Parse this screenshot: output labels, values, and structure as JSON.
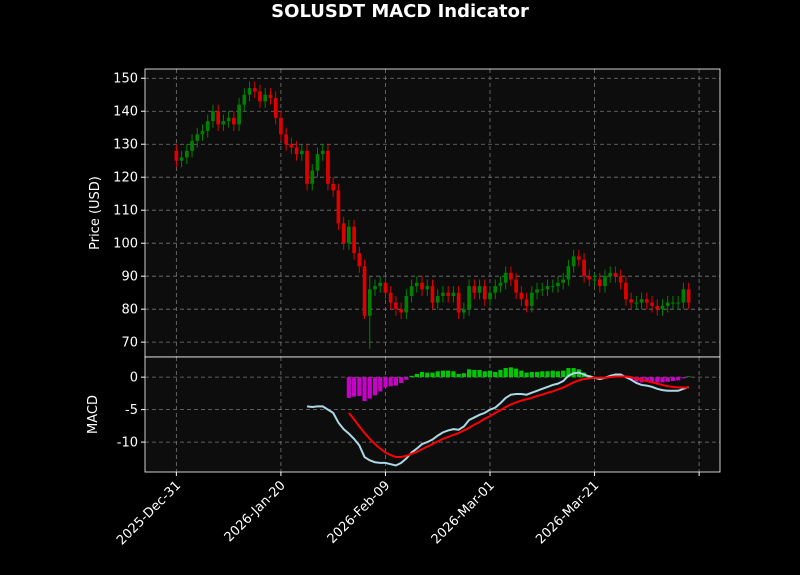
{
  "chart_data": {
    "title": "SOLUSDT MACD Indicator",
    "x": [
      "2025-12-31",
      "2026-01-01",
      "2026-01-02",
      "2026-01-03",
      "2026-01-04",
      "2026-01-05",
      "2026-01-06",
      "2026-01-07",
      "2026-01-08",
      "2026-01-09",
      "2026-01-10",
      "2026-01-11",
      "2026-01-12",
      "2026-01-13",
      "2026-01-14",
      "2026-01-15",
      "2026-01-16",
      "2026-01-17",
      "2026-01-18",
      "2026-01-19",
      "2026-01-20",
      "2026-01-21",
      "2026-01-22",
      "2026-01-23",
      "2026-01-24",
      "2026-01-25",
      "2026-01-26",
      "2026-01-27",
      "2026-01-28",
      "2026-01-29",
      "2026-01-30",
      "2026-01-31",
      "2026-02-01",
      "2026-02-02",
      "2026-02-03",
      "2026-02-04",
      "2026-02-05",
      "2026-02-06",
      "2026-02-07",
      "2026-02-08",
      "2026-02-09",
      "2026-02-10",
      "2026-02-11",
      "2026-02-12",
      "2026-02-13",
      "2026-02-14",
      "2026-02-15",
      "2026-02-16",
      "2026-02-17",
      "2026-02-18",
      "2026-02-19",
      "2026-02-20",
      "2026-02-21",
      "2026-02-22",
      "2026-02-23",
      "2026-02-24",
      "2026-02-25",
      "2026-02-26",
      "2026-02-27",
      "2026-02-28",
      "2026-03-01",
      "2026-03-02",
      "2026-03-03",
      "2026-03-04",
      "2026-03-05",
      "2026-03-06",
      "2026-03-07",
      "2026-03-08",
      "2026-03-09",
      "2026-03-10",
      "2026-03-11",
      "2026-03-12",
      "2026-03-13",
      "2026-03-14",
      "2026-03-15",
      "2026-03-16",
      "2026-03-17",
      "2026-03-18",
      "2026-03-19",
      "2026-03-20",
      "2026-03-21",
      "2026-03-22",
      "2026-03-23",
      "2026-03-24",
      "2026-03-25",
      "2026-03-26",
      "2026-03-27",
      "2026-03-28",
      "2026-03-29",
      "2026-03-30",
      "2026-03-31",
      "2026-04-01",
      "2026-04-02",
      "2026-04-03",
      "2026-04-04",
      "2026-04-05",
      "2026-04-06",
      "2026-04-07",
      "2026-04-08"
    ],
    "xlim": [
      "2025-12-25",
      "2026-04-14"
    ],
    "xticks": [
      {
        "value": "2025-12-31",
        "label": "2025-Dec-31"
      },
      {
        "value": "2026-01-20",
        "label": "2026-Jan-20"
      },
      {
        "value": "2026-02-09",
        "label": "2026-Feb-09"
      },
      {
        "value": "2026-03-01",
        "label": "2026-Mar-01"
      },
      {
        "value": "2026-03-21",
        "label": "2026-Mar-21"
      },
      {
        "value": "2026-04-10",
        "label": null
      }
    ],
    "grid": true,
    "panels": [
      {
        "type": "candlestick",
        "ylabel": "Price (USD)",
        "up_color": "#008000",
        "down_color": "#e00000",
        "ylim": [
          65.5,
          152.8
        ],
        "yticks": [
          70,
          80,
          90,
          100,
          110,
          120,
          130,
          140,
          150
        ],
        "open": [
          128,
          125,
          126,
          128,
          131,
          133,
          134,
          137,
          140,
          136,
          137,
          138,
          136,
          142,
          145,
          147,
          146,
          143,
          145,
          144,
          138,
          133,
          130,
          129,
          127,
          128,
          118,
          122,
          127,
          128,
          118,
          116,
          106,
          100,
          105,
          97,
          93,
          78,
          86,
          87,
          88,
          85,
          82,
          80,
          79,
          84,
          87,
          88,
          86,
          87,
          82,
          84,
          85,
          84,
          85,
          79,
          80,
          87,
          85,
          87,
          83,
          85,
          87,
          88,
          91,
          89,
          85,
          83,
          81,
          85,
          86,
          86,
          87,
          87,
          88,
          89,
          93,
          96,
          95,
          90,
          89,
          89,
          87,
          90,
          91,
          90,
          88,
          83,
          82,
          82,
          83,
          82,
          81,
          80,
          81,
          82,
          82,
          82,
          86
        ],
        "high": [
          130,
          128,
          130,
          133,
          135,
          136,
          139,
          142,
          142,
          139,
          140,
          140,
          144,
          147,
          149,
          149,
          148,
          147,
          147,
          146,
          140,
          135,
          132,
          131,
          130,
          130,
          124,
          129,
          130,
          130,
          120,
          118,
          108,
          107,
          107,
          99,
          95,
          90,
          89,
          90,
          90,
          87,
          84,
          82,
          86,
          89,
          90,
          90,
          89,
          89,
          86,
          87,
          87,
          87,
          87,
          82,
          89,
          89,
          89,
          89,
          87,
          89,
          90,
          93,
          93,
          91,
          87,
          85,
          87,
          88,
          88,
          89,
          89,
          90,
          91,
          95,
          98,
          98,
          97,
          92,
          91,
          91,
          92,
          93,
          93,
          92,
          90,
          85,
          84,
          85,
          85,
          84,
          83,
          83,
          84,
          84,
          84,
          88,
          88
        ],
        "low": [
          123,
          123,
          124,
          126,
          129,
          131,
          132,
          135,
          134,
          134,
          135,
          134,
          134,
          140,
          143,
          144,
          141,
          141,
          142,
          136,
          131,
          128,
          127,
          125,
          125,
          116,
          116,
          120,
          125,
          116,
          114,
          104,
          98,
          98,
          95,
          91,
          77,
          68,
          84,
          85,
          83,
          80,
          78,
          77,
          77,
          82,
          85,
          84,
          84,
          80,
          80,
          82,
          82,
          82,
          77,
          77,
          78,
          83,
          83,
          81,
          81,
          83,
          85,
          86,
          87,
          83,
          81,
          79,
          79,
          83,
          84,
          84,
          85,
          85,
          86,
          87,
          91,
          93,
          88,
          87,
          87,
          85,
          85,
          88,
          88,
          86,
          81,
          80,
          80,
          80,
          80,
          79,
          78,
          78,
          79,
          80,
          80,
          80,
          80
        ],
        "close": [
          125,
          126,
          128,
          131,
          133,
          134,
          137,
          140,
          136,
          137,
          138,
          136,
          142,
          145,
          147,
          146,
          143,
          145,
          144,
          138,
          133,
          130,
          129,
          127,
          128,
          118,
          122,
          127,
          128,
          118,
          116,
          106,
          100,
          105,
          97,
          93,
          78,
          86,
          87,
          88,
          85,
          82,
          80,
          79,
          84,
          87,
          88,
          86,
          87,
          82,
          84,
          85,
          84,
          85,
          79,
          80,
          87,
          85,
          87,
          83,
          85,
          87,
          88,
          91,
          89,
          85,
          83,
          81,
          85,
          86,
          86,
          87,
          87,
          88,
          89,
          93,
          96,
          95,
          90,
          89,
          89,
          87,
          90,
          91,
          90,
          88,
          83,
          82,
          82,
          83,
          82,
          81,
          80,
          81,
          82,
          82,
          82,
          86,
          82
        ]
      },
      {
        "type": "macd",
        "ylabel": "MACD",
        "ylim": [
          -14.6,
          3.1
        ],
        "yticks": [
          0,
          -5,
          -10
        ],
        "series": [
          {
            "type": "bar",
            "color": "#00c800",
            "negative_color": "#c800c8",
            "values": [
              null,
              null,
              null,
              null,
              null,
              null,
              null,
              null,
              null,
              null,
              null,
              null,
              null,
              null,
              null,
              null,
              null,
              null,
              null,
              null,
              null,
              null,
              null,
              null,
              null,
              null,
              null,
              null,
              null,
              null,
              null,
              null,
              null,
              -3.2,
              -3,
              -2.9,
              -3.7,
              -3.3,
              -2.8,
              -2.2,
              -1.6,
              -1.4,
              -1.3,
              -0.9,
              -0.4,
              0.2,
              0.5,
              0.8,
              0.7,
              0.7,
              0.9,
              1,
              1,
              0.9,
              0.5,
              0.6,
              1.2,
              1.1,
              1.1,
              0.9,
              1,
              0.8,
              1.1,
              1.4,
              1.5,
              1.3,
              1,
              0.7,
              0.8,
              0.8,
              0.9,
              0.9,
              1,
              0.9,
              1,
              1.4,
              1.4,
              1.2,
              0.7,
              0.3,
              0,
              -0.2,
              0,
              0.2,
              0.3,
              0.3,
              -0.1,
              -0.4,
              -0.7,
              -0.8,
              -0.7,
              -0.7,
              -0.8,
              -0.8,
              -0.7,
              -0.6,
              -0.5,
              -0.2,
              0.1
            ]
          },
          {
            "type": "line",
            "color": "#add8e6",
            "values": [
              null,
              null,
              null,
              null,
              null,
              null,
              null,
              null,
              null,
              null,
              null,
              null,
              null,
              null,
              null,
              null,
              null,
              null,
              null,
              null,
              null,
              null,
              null,
              null,
              null,
              -4.5,
              -4.6,
              -4.5,
              -4.5,
              -5,
              -5.5,
              -7,
              -8,
              -8.7,
              -9.5,
              -10.5,
              -12.3,
              -12.8,
              -13.1,
              -13.2,
              -13.2,
              -13.4,
              -13.6,
              -13.2,
              -12.5,
              -11.6,
              -11,
              -10.3,
              -10,
              -9.6,
              -9,
              -8.5,
              -8.2,
              -8,
              -8.1,
              -7.6,
              -6.6,
              -6.2,
              -5.8,
              -5.5,
              -5,
              -4.7,
              -4,
              -3.2,
              -2.7,
              -2.6,
              -2.6,
              -2.7,
              -2.4,
              -2.1,
              -1.8,
              -1.5,
              -1.2,
              -1,
              -0.6,
              0.2,
              0.6,
              0.7,
              0.4,
              0.1,
              -0.1,
              -0.3,
              -0.1,
              0.2,
              0.4,
              0.4,
              0,
              -0.4,
              -0.9,
              -1.2,
              -1.3,
              -1.5,
              -1.8,
              -2,
              -2.1,
              -2.1,
              -2.1,
              -1.8,
              -1.5
            ]
          },
          {
            "type": "line",
            "color": "#ff0000",
            "values": [
              null,
              null,
              null,
              null,
              null,
              null,
              null,
              null,
              null,
              null,
              null,
              null,
              null,
              null,
              null,
              null,
              null,
              null,
              null,
              null,
              null,
              null,
              null,
              null,
              null,
              null,
              null,
              null,
              null,
              null,
              null,
              null,
              null,
              -5.5,
              -6.5,
              -7.6,
              -8.6,
              -9.5,
              -10.3,
              -11,
              -11.6,
              -12,
              -12.3,
              -12.3,
              -12.1,
              -11.8,
              -11.5,
              -11.1,
              -10.7,
              -10.3,
              -9.9,
              -9.5,
              -9.2,
              -8.9,
              -8.6,
              -8.2,
              -7.8,
              -7.3,
              -6.9,
              -6.4,
              -6,
              -5.5,
              -5.1,
              -4.6,
              -4.2,
              -3.9,
              -3.6,
              -3.4,
              -3.2,
              -2.9,
              -2.7,
              -2.4,
              -2.2,
              -1.9,
              -1.6,
              -1.2,
              -0.8,
              -0.5,
              -0.3,
              -0.2,
              -0.1,
              -0.1,
              -0.1,
              0,
              0.1,
              0.1,
              0.1,
              0,
              -0.2,
              -0.4,
              -0.6,
              -0.8,
              -1,
              -1.2,
              -1.4,
              -1.5,
              -1.6,
              -1.6,
              -1.6
            ]
          }
        ]
      }
    ]
  }
}
